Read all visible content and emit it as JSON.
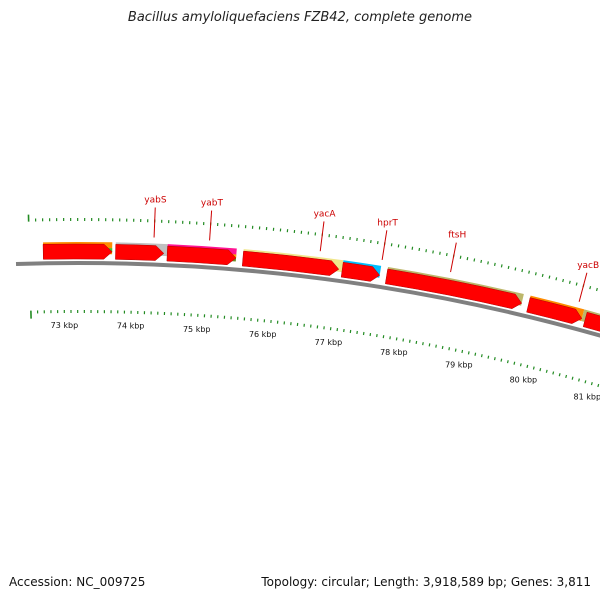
{
  "title": "Bacillus amyloliquefaciens FZB42, complete genome",
  "accession": "Accession: NC_009725",
  "summary": "Topology: circular; Length: 3,918,589 bp; Genes: 3,811",
  "colors": {
    "backbone": "#808080",
    "cds": "#ff0000",
    "label": "#cc0000",
    "tick": "#228b22"
  },
  "gene_labels": [
    {
      "name": "yabS",
      "position_kbp": 74.3
    },
    {
      "name": "yabT",
      "position_kbp": 75.1
    },
    {
      "name": "yacA",
      "position_kbp": 76.7
    },
    {
      "name": "hprT",
      "position_kbp": 77.6
    },
    {
      "name": "ftsH",
      "position_kbp": 78.6
    },
    {
      "name": "yacB",
      "position_kbp": 80.5
    }
  ],
  "kbp_labels": [
    "73 kbp",
    "74 kbp",
    "75 kbp",
    "76 kbp",
    "77 kbp",
    "78 kbp",
    "79 kbp",
    "80 kbp",
    "81 kbp"
  ],
  "cds_arrows": [
    {
      "start_kbp": 72.7,
      "end_kbp": 73.7
    },
    {
      "start_kbp": 73.75,
      "end_kbp": 74.45
    },
    {
      "start_kbp": 74.5,
      "end_kbp": 75.5
    },
    {
      "start_kbp": 75.6,
      "end_kbp": 77.0
    },
    {
      "start_kbp": 77.05,
      "end_kbp": 77.6
    },
    {
      "start_kbp": 77.7,
      "end_kbp": 79.7
    },
    {
      "start_kbp": 79.8,
      "end_kbp": 80.6
    },
    {
      "start_kbp": 80.65,
      "end_kbp": 81.6
    }
  ],
  "feature_blocks": [
    {
      "start_kbp": 72.7,
      "end_kbp": 73.7,
      "color": "#ff8c00",
      "lane": 0
    },
    {
      "start_kbp": 72.7,
      "end_kbp": 73.7,
      "color": "#32cd32",
      "lane": 1
    },
    {
      "start_kbp": 73.75,
      "end_kbp": 74.5,
      "color": "#c0c0c0",
      "lane": 0
    },
    {
      "start_kbp": 74.5,
      "end_kbp": 75.5,
      "color": "#ff1493",
      "lane": 0
    },
    {
      "start_kbp": 74.5,
      "end_kbp": 75.5,
      "color": "#ffa500",
      "lane": 1
    },
    {
      "start_kbp": 74.5,
      "end_kbp": 75.5,
      "color": "#6b8e23",
      "lane": 2
    },
    {
      "start_kbp": 75.6,
      "end_kbp": 77.05,
      "color": "#f0e68c",
      "lane": 0
    },
    {
      "start_kbp": 77.05,
      "end_kbp": 77.6,
      "color": "#00bfff",
      "lane": 0
    },
    {
      "start_kbp": 77.7,
      "end_kbp": 79.7,
      "color": "#bdb76b",
      "lane": 0
    },
    {
      "start_kbp": 79.8,
      "end_kbp": 80.6,
      "color": "#ff8c00",
      "lane": 0
    },
    {
      "start_kbp": 80.6,
      "end_kbp": 81.6,
      "color": "#bdb76b",
      "lane": 0
    }
  ]
}
